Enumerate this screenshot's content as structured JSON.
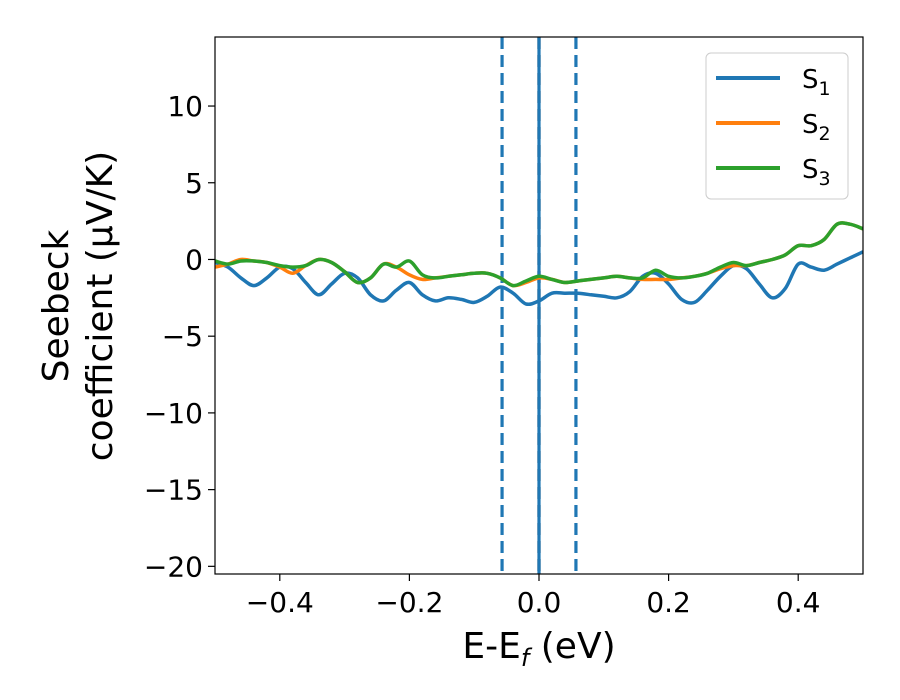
{
  "chart_data": {
    "type": "line",
    "title": "",
    "xlabel": {
      "main": "E-E",
      "sub": "f",
      "tail": " (eV)"
    },
    "ylabel": {
      "line1": "Seebeck",
      "line2": "coefficient  (μV/K)"
    },
    "xlim": [
      -0.5,
      0.5
    ],
    "ylim": [
      -20.5,
      14.5
    ],
    "x_ticks": [
      -0.4,
      -0.2,
      0.0,
      0.2,
      0.4
    ],
    "x_tick_labels": [
      "−0.4",
      "−0.2",
      "0.0",
      "0.2",
      "0.4"
    ],
    "y_ticks": [
      10,
      5,
      0,
      -5,
      -10,
      -15,
      -20
    ],
    "y_tick_labels": [
      "10",
      "5",
      "0",
      "−5",
      "−10",
      "−15",
      "−20"
    ],
    "grid": false,
    "legend": "top-right",
    "vlines": [
      {
        "x": -0.057,
        "color": "#1f77b4",
        "style": "dashed"
      },
      {
        "x": 0.0,
        "color": "#000000",
        "style": "dashed"
      },
      {
        "x": 0.0,
        "color": "#1f77b4",
        "style": "solid"
      },
      {
        "x": 0.057,
        "color": "#1f77b4",
        "style": "dashed"
      }
    ],
    "series": [
      {
        "name": "S",
        "sub": "1",
        "color": "#1f77b4",
        "x": [
          -0.5,
          -0.48,
          -0.46,
          -0.44,
          -0.42,
          -0.4,
          -0.38,
          -0.36,
          -0.34,
          -0.32,
          -0.3,
          -0.28,
          -0.26,
          -0.24,
          -0.22,
          -0.2,
          -0.18,
          -0.16,
          -0.14,
          -0.12,
          -0.1,
          -0.08,
          -0.06,
          -0.04,
          -0.02,
          0.0,
          0.02,
          0.04,
          0.06,
          0.08,
          0.1,
          0.12,
          0.14,
          0.16,
          0.18,
          0.2,
          0.22,
          0.24,
          0.26,
          0.28,
          0.3,
          0.32,
          0.34,
          0.36,
          0.38,
          0.4,
          0.42,
          0.44,
          0.46,
          0.48,
          0.5
        ],
        "y": [
          -0.2,
          -0.5,
          -1.2,
          -1.7,
          -1.2,
          -0.5,
          -0.6,
          -1.5,
          -2.3,
          -1.6,
          -0.9,
          -1.2,
          -2.3,
          -2.7,
          -2.0,
          -1.5,
          -2.3,
          -2.7,
          -2.5,
          -2.6,
          -2.8,
          -2.4,
          -1.8,
          -2.2,
          -2.9,
          -2.7,
          -2.2,
          -2.2,
          -2.2,
          -2.3,
          -2.4,
          -2.5,
          -2.1,
          -1.1,
          -0.9,
          -1.6,
          -2.6,
          -2.8,
          -2.0,
          -1.1,
          -0.4,
          -0.6,
          -1.6,
          -2.5,
          -1.9,
          -0.3,
          -0.5,
          -0.7,
          -0.3,
          0.1,
          0.5
        ]
      },
      {
        "name": "S",
        "sub": "2",
        "color": "#ff7f0e",
        "x": [
          -0.5,
          -0.48,
          -0.46,
          -0.44,
          -0.42,
          -0.4,
          -0.38,
          -0.36,
          -0.34,
          -0.32,
          -0.3,
          -0.28,
          -0.26,
          -0.24,
          -0.22,
          -0.2,
          -0.18,
          -0.16,
          -0.14,
          -0.12,
          -0.1,
          -0.08,
          -0.06,
          -0.04,
          -0.02,
          0.0,
          0.02,
          0.04,
          0.06,
          0.08,
          0.1,
          0.12,
          0.14,
          0.16,
          0.18,
          0.2,
          0.22,
          0.24,
          0.26,
          0.28,
          0.3,
          0.32,
          0.34,
          0.36,
          0.38,
          0.4,
          0.42,
          0.44,
          0.46,
          0.48,
          0.5
        ],
        "y": [
          -0.5,
          -0.3,
          0.0,
          -0.1,
          -0.2,
          -0.5,
          -0.9,
          -0.4,
          0.0,
          -0.2,
          -0.8,
          -1.5,
          -1.2,
          -0.3,
          -0.5,
          -1.0,
          -1.3,
          -1.2,
          -1.1,
          -1.0,
          -0.9,
          -0.9,
          -1.2,
          -1.7,
          -1.5,
          -1.2,
          -1.3,
          -1.5,
          -1.4,
          -1.3,
          -1.2,
          -1.1,
          -1.2,
          -1.3,
          -1.3,
          -1.3,
          -1.2,
          -1.1,
          -0.9,
          -0.6,
          -0.4,
          -0.4,
          -0.2,
          0.0,
          0.3,
          0.9,
          0.9,
          1.3,
          2.3,
          2.3,
          2.0
        ]
      },
      {
        "name": "S",
        "sub": "3",
        "color": "#2ca02c",
        "x": [
          -0.5,
          -0.48,
          -0.46,
          -0.44,
          -0.42,
          -0.4,
          -0.38,
          -0.36,
          -0.34,
          -0.32,
          -0.3,
          -0.28,
          -0.26,
          -0.24,
          -0.22,
          -0.2,
          -0.18,
          -0.16,
          -0.14,
          -0.12,
          -0.1,
          -0.08,
          -0.06,
          -0.04,
          -0.02,
          0.0,
          0.02,
          0.04,
          0.06,
          0.08,
          0.1,
          0.12,
          0.14,
          0.16,
          0.18,
          0.2,
          0.22,
          0.24,
          0.26,
          0.28,
          0.3,
          0.32,
          0.34,
          0.36,
          0.38,
          0.4,
          0.42,
          0.44,
          0.46,
          0.48,
          0.5
        ],
        "y": [
          -0.1,
          -0.3,
          -0.1,
          -0.1,
          -0.2,
          -0.4,
          -0.5,
          -0.4,
          0.0,
          -0.2,
          -0.8,
          -1.5,
          -1.2,
          -0.3,
          -0.5,
          -0.1,
          -1.0,
          -1.2,
          -1.1,
          -1.0,
          -0.9,
          -0.9,
          -1.2,
          -1.7,
          -1.4,
          -1.1,
          -1.3,
          -1.5,
          -1.4,
          -1.3,
          -1.2,
          -1.1,
          -1.2,
          -1.2,
          -0.7,
          -1.1,
          -1.2,
          -1.1,
          -0.9,
          -0.5,
          -0.2,
          -0.4,
          -0.2,
          0.0,
          0.3,
          0.9,
          0.9,
          1.3,
          2.3,
          2.3,
          2.0
        ]
      }
    ]
  }
}
